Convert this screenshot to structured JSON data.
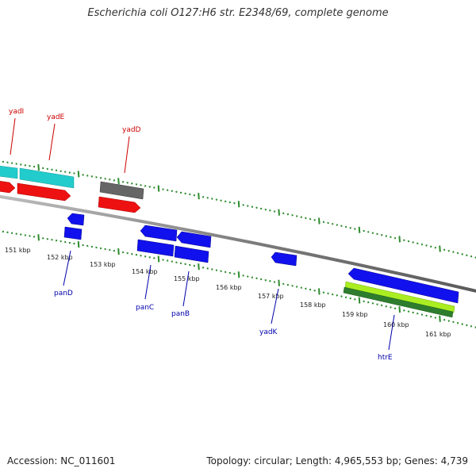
{
  "title": "Escherichia coli O127:H6 str. E2348/69, complete genome",
  "footer": {
    "accession": "Accession: NC_011601",
    "summary": "Topology: circular; Length: 4,965,553 bp; Genes: 4,739"
  },
  "colors": {
    "background": "#ffffff",
    "backbone": "#8a8a8a",
    "tick": "#2e8b2e",
    "forward_cds": "#ee1111",
    "reverse_cds": "#1111ee",
    "rna": "#22cccc",
    "other": "#666666",
    "highlight_light": "#aaee22",
    "highlight_dark": "#2e7d2e",
    "label_forward": "#cc0000",
    "label_reverse": "#0000aa"
  },
  "scale_labels": [
    "151 kbp",
    "152 kbp",
    "153 kbp",
    "154 kbp",
    "155 kbp",
    "156 kbp",
    "157 kbp",
    "158 kbp",
    "159 kbp",
    "160 kbp",
    "161 kbp"
  ],
  "gene_labels": {
    "top": [
      "yadI",
      "yadE",
      "yadD"
    ],
    "bottom": [
      "panD",
      "panC",
      "panB",
      "yadK",
      "htrE"
    ]
  },
  "features": [
    {
      "name": "rna-feature-1",
      "strand": "forward",
      "color": "#22cccc"
    },
    {
      "name": "rna-feature-2",
      "strand": "forward",
      "color": "#22cccc"
    },
    {
      "name": "forward-cds-1",
      "strand": "forward",
      "color": "#ee1111"
    },
    {
      "name": "forward-cds-2",
      "strand": "forward",
      "color": "#ee1111"
    },
    {
      "name": "grey-feature",
      "strand": "forward",
      "color": "#666666"
    },
    {
      "name": "forward-cds-3",
      "strand": "forward",
      "color": "#ee1111"
    },
    {
      "name": "reverse-cds-panD-a",
      "strand": "reverse",
      "color": "#1111ee"
    },
    {
      "name": "reverse-cds-panD-b",
      "strand": "reverse",
      "color": "#1111ee"
    },
    {
      "name": "reverse-cds-1",
      "strand": "reverse",
      "color": "#1111ee"
    },
    {
      "name": "reverse-cds-2",
      "strand": "reverse",
      "color": "#1111ee"
    },
    {
      "name": "reverse-cds-panC",
      "strand": "reverse",
      "color": "#1111ee"
    },
    {
      "name": "reverse-cds-panB",
      "strand": "reverse",
      "color": "#1111ee"
    },
    {
      "name": "reverse-cds-yadK",
      "strand": "reverse",
      "color": "#1111ee"
    },
    {
      "name": "reverse-cds-htrE",
      "strand": "reverse",
      "color": "#1111ee"
    },
    {
      "name": "highlight-bar-light",
      "strand": "reverse",
      "color": "#aaee22"
    },
    {
      "name": "highlight-bar-dark",
      "strand": "reverse",
      "color": "#2e7d2e"
    }
  ]
}
